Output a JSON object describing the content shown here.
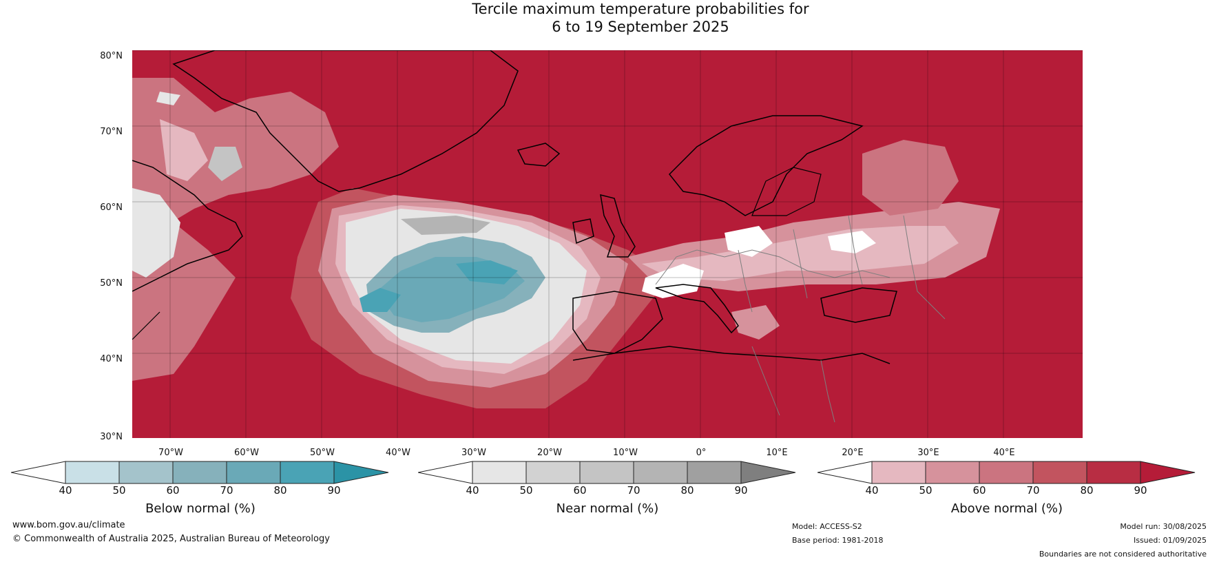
{
  "title": {
    "line1": "Tercile maximum temperature probabilities for",
    "line2": "6 to 19 September 2025"
  },
  "map": {
    "lat_labels": [
      "80°N",
      "70°N",
      "60°N",
      "50°N",
      "40°N",
      "30°N"
    ],
    "lon_labels": [
      "70°W",
      "60°W",
      "50°W",
      "40°W",
      "30°W",
      "20°W",
      "10°W",
      "0°",
      "10°E",
      "20°E",
      "30°E",
      "40°E"
    ],
    "land_outline_color": "#000000",
    "country_border_color": "#7f7f7f"
  },
  "colorbars": [
    {
      "label": "Below normal (%)",
      "ticks": [
        "40",
        "50",
        "60",
        "70",
        "80",
        "90"
      ],
      "colors": [
        "#ffffff",
        "#c9e0e7",
        "#a4c3cb",
        "#86b1bb",
        "#6aa9b7",
        "#4aa3b5",
        "#2b93a6"
      ]
    },
    {
      "label": "Near normal (%)",
      "ticks": [
        "40",
        "50",
        "60",
        "70",
        "80",
        "90"
      ],
      "colors": [
        "#ffffff",
        "#e6e6e6",
        "#d2d2d2",
        "#c4c4c4",
        "#b4b4b4",
        "#a0a0a0",
        "#7f7f7f"
      ]
    },
    {
      "label": "Above normal (%)",
      "ticks": [
        "40",
        "50",
        "60",
        "70",
        "80",
        "90"
      ],
      "colors": [
        "#ffffff",
        "#e5b8c0",
        "#d6929c",
        "#cb7480",
        "#c2545f",
        "#b82d43",
        "#b51c38"
      ]
    }
  ],
  "footer": {
    "website": "www.bom.gov.au/climate",
    "copyright": "© Commonwealth of Australia 2025, Australian Bureau of Meteorology",
    "model": "Model: ACCESS-S2",
    "base_period": "Base period: 1981-2018",
    "model_run": "Model run: 30/08/2025",
    "issued": "Issued: 01/09/2025",
    "disclaimer": "Boundaries are not considered authoritative"
  }
}
